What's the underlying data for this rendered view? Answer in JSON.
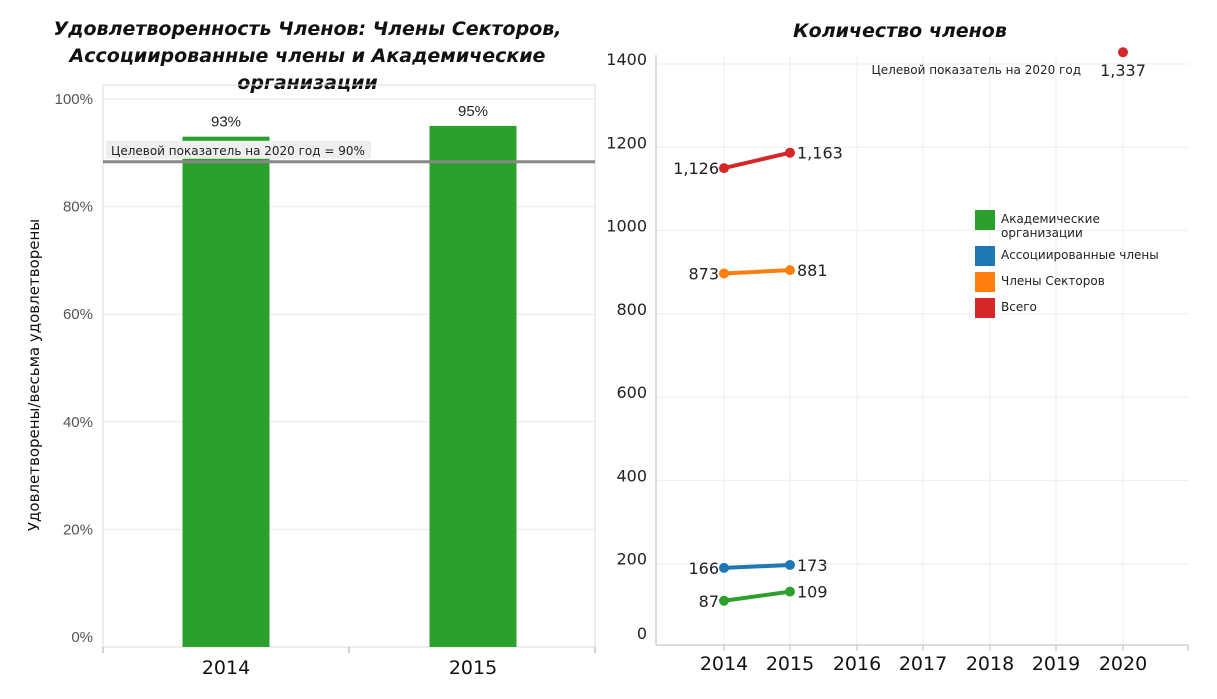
{
  "chart_data": [
    {
      "type": "bar",
      "title": "Удовлетворенность Членов: Члены Секторов, Ассоциированные члены и Академические организации",
      "ylabel": "Удовлетворены/весьма удовлетворены",
      "categories": [
        "2014",
        "2015"
      ],
      "values": [
        93,
        95
      ],
      "value_labels": [
        "93%",
        "95%"
      ],
      "ylim": [
        0,
        100
      ],
      "yticks": [
        0,
        20,
        40,
        60,
        80,
        100
      ],
      "ytick_labels": [
        "0%",
        "20%",
        "40%",
        "60%",
        "80%",
        "100%"
      ],
      "bar_color": "#2ca02c",
      "reference_line": {
        "value": 90,
        "label": "Целевой показатель на 2020 год = 90%",
        "color": "#888888"
      },
      "grid": "horizontal"
    },
    {
      "type": "line",
      "title": "Количество членов",
      "x": [
        2014,
        2015,
        2016,
        2017,
        2018,
        2019,
        2020
      ],
      "ylim": [
        0,
        1400
      ],
      "yticks": [
        0,
        200,
        400,
        600,
        800,
        1000,
        1200,
        1400
      ],
      "legend_position": "right",
      "series": [
        {
          "name": "Академические организации",
          "color": "#2ca02c",
          "points": [
            [
              2014,
              87
            ],
            [
              2015,
              109
            ]
          ],
          "labels": [
            "87",
            "109"
          ]
        },
        {
          "name": "Ассоциированные члены",
          "color": "#1f77b4",
          "points": [
            [
              2014,
              166
            ],
            [
              2015,
              173
            ]
          ],
          "labels": [
            "166",
            "173"
          ]
        },
        {
          "name": "Члены Секторов",
          "color": "#ff7f0e",
          "points": [
            [
              2014,
              873
            ],
            [
              2015,
              881
            ]
          ],
          "labels": [
            "873",
            "881"
          ]
        },
        {
          "name": "Всего",
          "color": "#d62728",
          "points": [
            [
              2014,
              1126
            ],
            [
              2015,
              1163
            ]
          ],
          "labels": [
            "1,126",
            "1,163"
          ]
        }
      ],
      "target": {
        "x": 2020,
        "y": 1337,
        "value_label": "1,337",
        "label": "Целевой показатель на 2020 год",
        "color": "#d62728"
      },
      "grid": "both"
    }
  ]
}
